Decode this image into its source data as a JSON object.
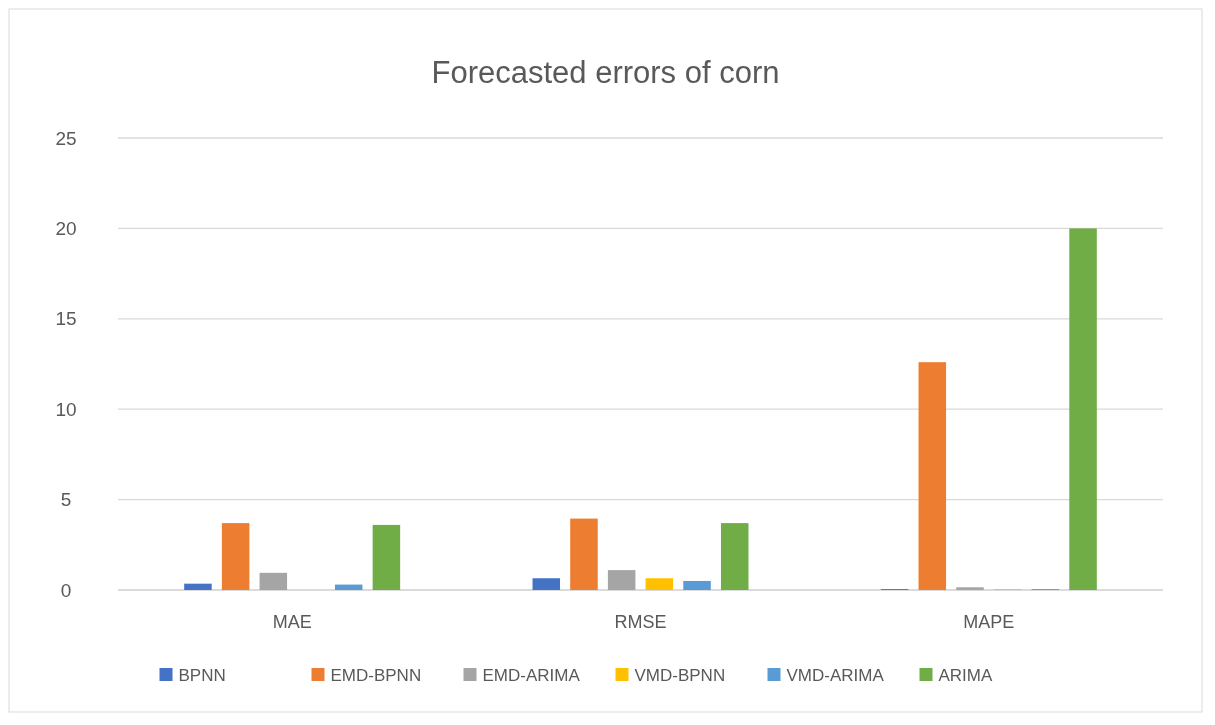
{
  "chart_data": {
    "type": "bar",
    "title": "Forecasted errors of corn",
    "categories": [
      "MAE",
      "RMSE",
      "MAPE"
    ],
    "series": [
      {
        "name": "BPNN",
        "color": "#4472c4",
        "values": [
          0.35,
          0.65,
          0.05
        ]
      },
      {
        "name": "EMD-BPNN",
        "color": "#ed7d31",
        "values": [
          3.7,
          3.95,
          12.6
        ]
      },
      {
        "name": "EMD-ARIMA",
        "color": "#a5a5a5",
        "values": [
          0.95,
          1.1,
          0.15
        ]
      },
      {
        "name": "VMD-BPNN",
        "color": "#ffc000",
        "values": [
          0,
          0.65,
          0.05
        ]
      },
      {
        "name": "VMD-ARIMA",
        "color": "#5b9bd5",
        "values": [
          0.3,
          0.5,
          0.05
        ]
      },
      {
        "name": "ARIMA",
        "color": "#70ad47",
        "values": [
          3.6,
          3.7,
          20
        ]
      }
    ],
    "ylim": [
      0,
      25
    ],
    "yticks": [
      0,
      5,
      10,
      15,
      20,
      25
    ],
    "grid": "y",
    "legend": "bottom"
  }
}
